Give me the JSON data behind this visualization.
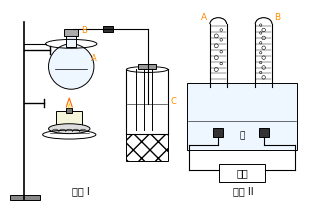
{
  "title_left": "实验 I",
  "title_right": "实验 II",
  "label_A_left": "A",
  "label_B_left": "B",
  "label_C": "C",
  "label_A_right": "A",
  "label_B_right": "B",
  "label_water": "水",
  "label_battery": "电池",
  "line_color": "#000000",
  "label_color_orange": "#FF8C00",
  "label_color_black": "#000000",
  "bg_color": "#ffffff",
  "fig_width": 3.26,
  "fig_height": 2.11,
  "dpi": 100
}
